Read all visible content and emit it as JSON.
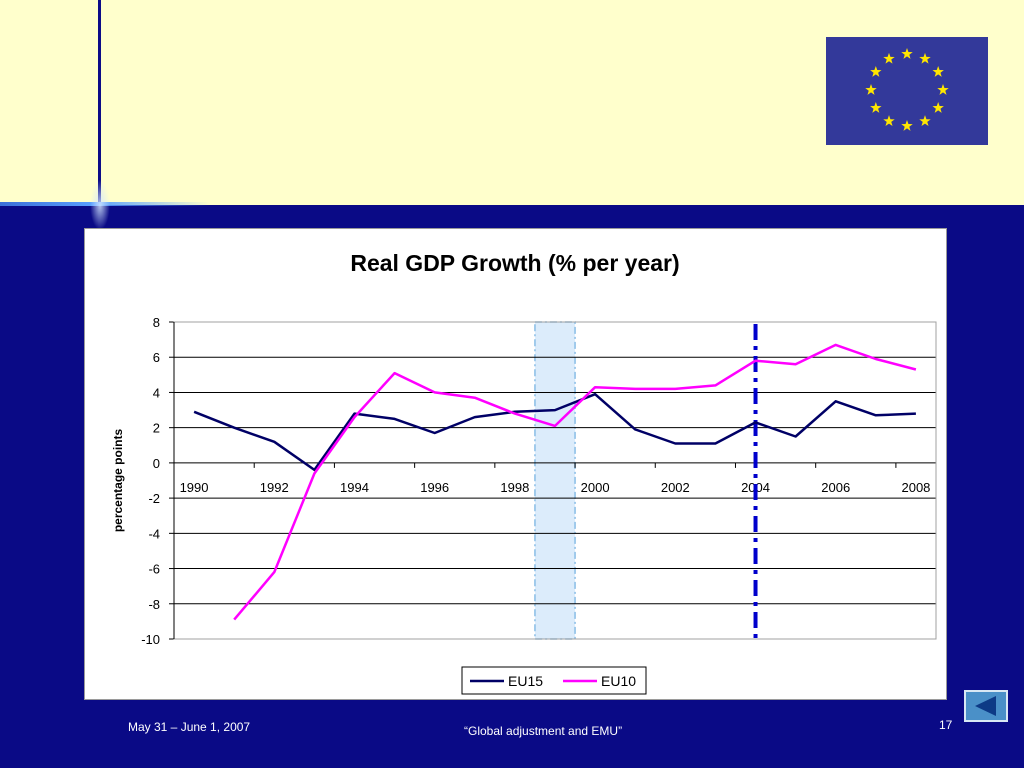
{
  "slide": {
    "footer_date": "May 31 – June 1, 2007",
    "footer_title": "“Global adjustment and EMU”",
    "page_number": "17",
    "flag_icon": "eu-flag-icon",
    "nav_icon": "back-arrow-icon"
  },
  "colors": {
    "slide_background": "#0a0a86",
    "top_band": "#ffffcc",
    "flag_blue": "#33399a",
    "flag_star": "#ffe600"
  },
  "chart_data": {
    "type": "line",
    "title": "Real GDP Growth (% per year)",
    "ylabel": "percentage points",
    "xlabel": "",
    "ylim": [
      -10,
      8
    ],
    "yticks": [
      "8",
      "6",
      "4",
      "2",
      "0",
      "-2",
      "-4",
      "-6",
      "-8",
      "-10"
    ],
    "x_tick_labels": [
      "1990",
      "1992",
      "1994",
      "1996",
      "1998",
      "2000",
      "2002",
      "2004",
      "2006",
      "2008"
    ],
    "x": [
      1990,
      1991,
      1992,
      1993,
      1994,
      1995,
      1996,
      1997,
      1998,
      1999,
      2000,
      2001,
      2002,
      2003,
      2004,
      2005,
      2006,
      2007,
      2008
    ],
    "series": [
      {
        "name": "EU15",
        "color": "#000066",
        "values": [
          2.9,
          2.0,
          1.2,
          -0.4,
          2.8,
          2.5,
          1.7,
          2.6,
          2.9,
          3.0,
          3.9,
          1.9,
          1.1,
          1.1,
          2.3,
          1.5,
          3.5,
          2.7,
          2.8
        ]
      },
      {
        "name": "EU10",
        "color": "#ff00ff",
        "values": [
          null,
          -8.9,
          -6.2,
          -0.6,
          2.6,
          5.1,
          4.0,
          3.7,
          2.8,
          2.1,
          4.3,
          4.2,
          4.2,
          4.4,
          5.8,
          5.6,
          6.7,
          5.9,
          5.3
        ]
      }
    ],
    "shaded_band": {
      "from": 1998.5,
      "to": 1999.5,
      "color": "#dcecfb"
    },
    "reference_line": {
      "x": 2004,
      "color": "#0000cc"
    },
    "grid": true,
    "legend": "bottom-center"
  }
}
